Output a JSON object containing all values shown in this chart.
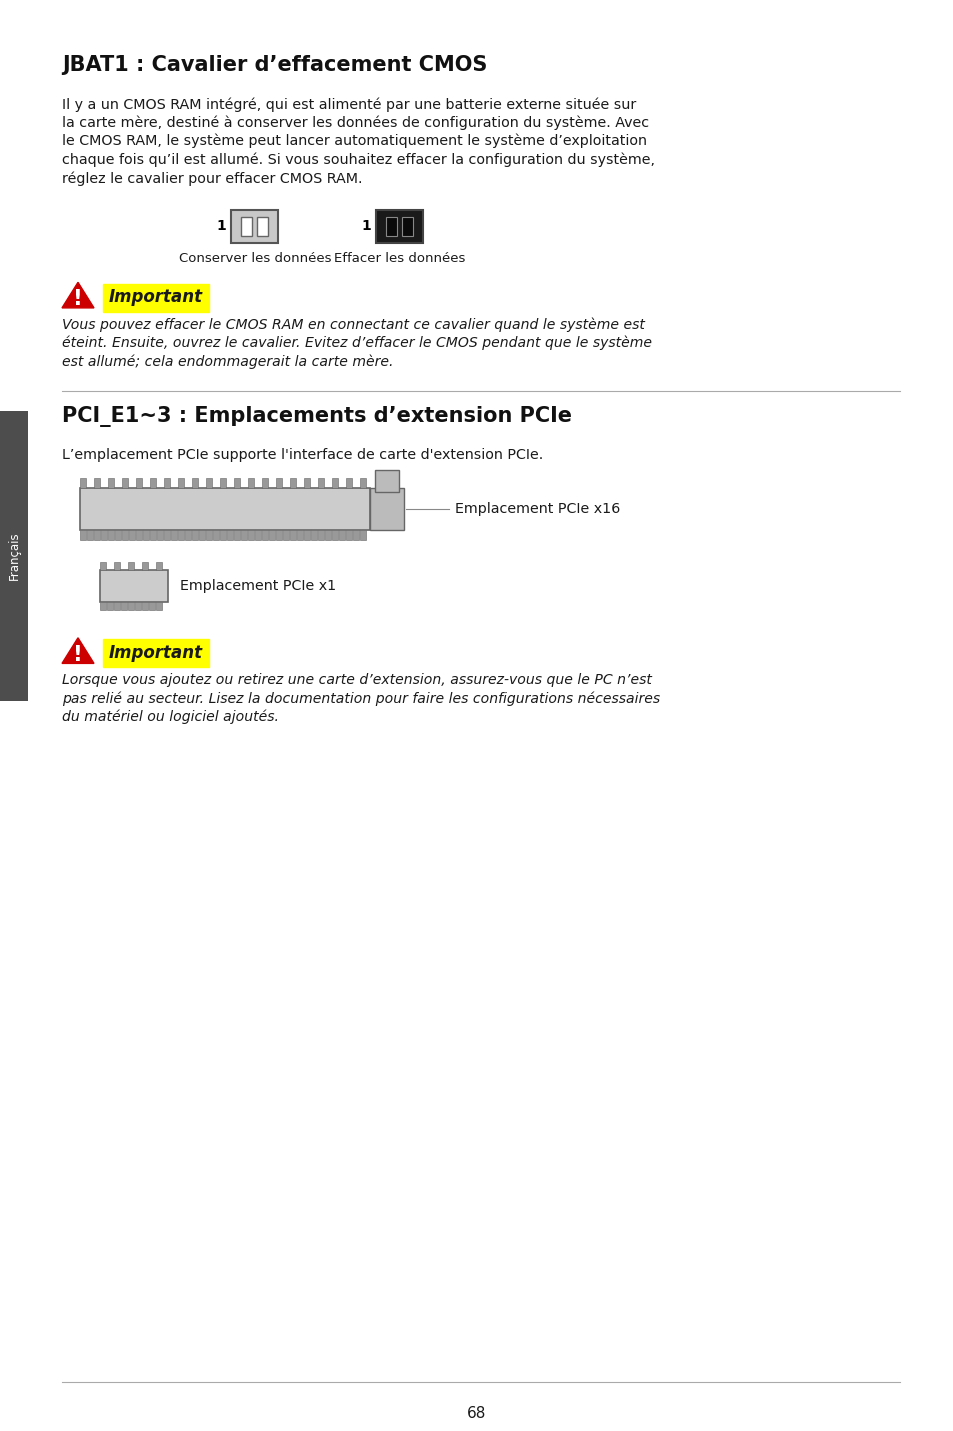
{
  "title1": "JBAT1 : Cavalier d’effacement CMOS",
  "body1_lines": [
    "Il y a un CMOS RAM intégré, qui est alimenté par une batterie externe située sur",
    "la carte mère, destiné à conserver les données de configuration du système. Avec",
    "le CMOS RAM, le système peut lancer automatiquement le système d’exploitation",
    "chaque fois qu’il est allumé. Si vous souhaitez effacer la configuration du système,",
    "réglez le cavalier pour effacer CMOS RAM."
  ],
  "label_conserver": "Conserver les données",
  "label_effacer": "Effacer les données",
  "important_label": "Important",
  "important_text1_lines": [
    "Vous pouvez effacer le CMOS RAM en connectant ce cavalier quand le système est",
    "éteint. Ensuite, ouvrez le cavalier. Evitez d’effacer le CMOS pendant que le système",
    "est allumé; cela endommagerait la carte mère."
  ],
  "title2": "PCI_E1~3 : Emplacements d’extension PCIe",
  "body2": "L’emplacement PCIe supporte l'interface de carte d'extension PCIe.",
  "label_x16": "Emplacement PCIe x16",
  "label_x1": "Emplacement PCIe x1",
  "important_text2_lines": [
    "Lorsque vous ajoutez ou retirez une carte d’extension, assurez-vous que le PC n’est",
    "pas relié au secteur. Lisez la documentation pour faire les configurations nécessaires",
    "du matériel ou logiciel ajoutés."
  ],
  "sidebar_text": "Français",
  "page_number": "68",
  "bg_color": "#ffffff",
  "text_color": "#1a1a1a",
  "title_color": "#111111",
  "sidebar_bg": "#4d4d4d",
  "sidebar_text_color": "#ffffff",
  "important_highlight": "#ffff00",
  "warning_red": "#cc0000",
  "gray_line": "#aaaaaa",
  "slot_fill": "#cccccc",
  "slot_edge": "#666666",
  "tooth_fill": "#999999",
  "latch_fill": "#bbbbbb"
}
